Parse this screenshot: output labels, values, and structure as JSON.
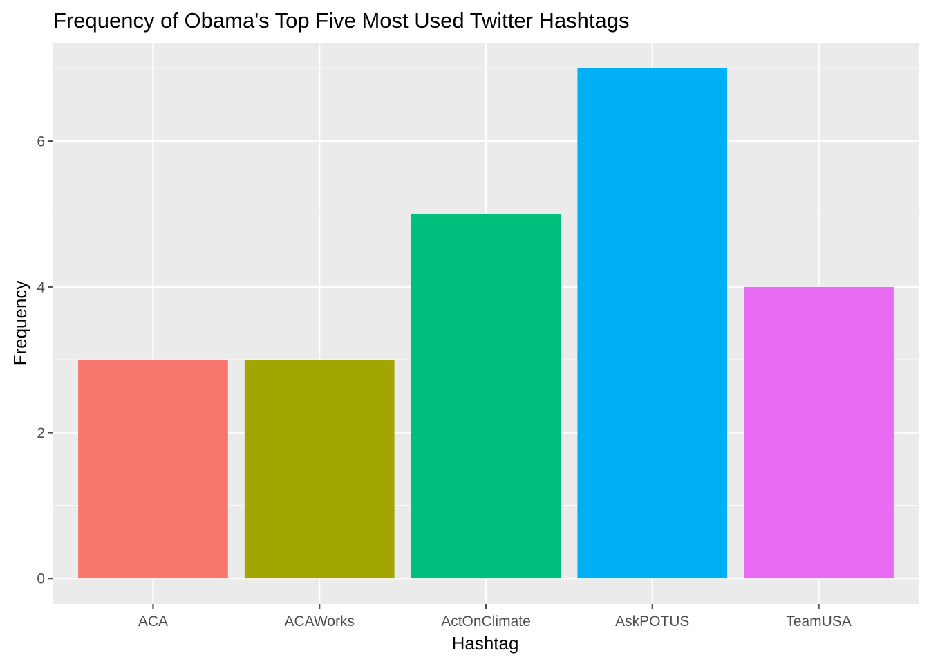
{
  "chart_data": {
    "type": "bar",
    "title": "Frequency of Obama's Top Five Most Used Twitter Hashtags",
    "xlabel": "Hashtag",
    "ylabel": "Frequency",
    "categories": [
      "ACA",
      "ACAWorks",
      "ActOnClimate",
      "AskPOTUS",
      "TeamUSA"
    ],
    "values": [
      3,
      3,
      5,
      7,
      4
    ],
    "colors": [
      "#F8766D",
      "#A3A500",
      "#00BF7D",
      "#00B0F6",
      "#E76BF3"
    ],
    "ylim": [
      -0.35,
      7.35
    ],
    "yticks": [
      0,
      2,
      4,
      6
    ],
    "yticks_minor": [
      1,
      3,
      5,
      7
    ],
    "grid": true,
    "legend": "none",
    "panel_background": "#EBEBEB",
    "grid_color": "#FFFFFF",
    "tick_color": "#4D4D4D"
  }
}
